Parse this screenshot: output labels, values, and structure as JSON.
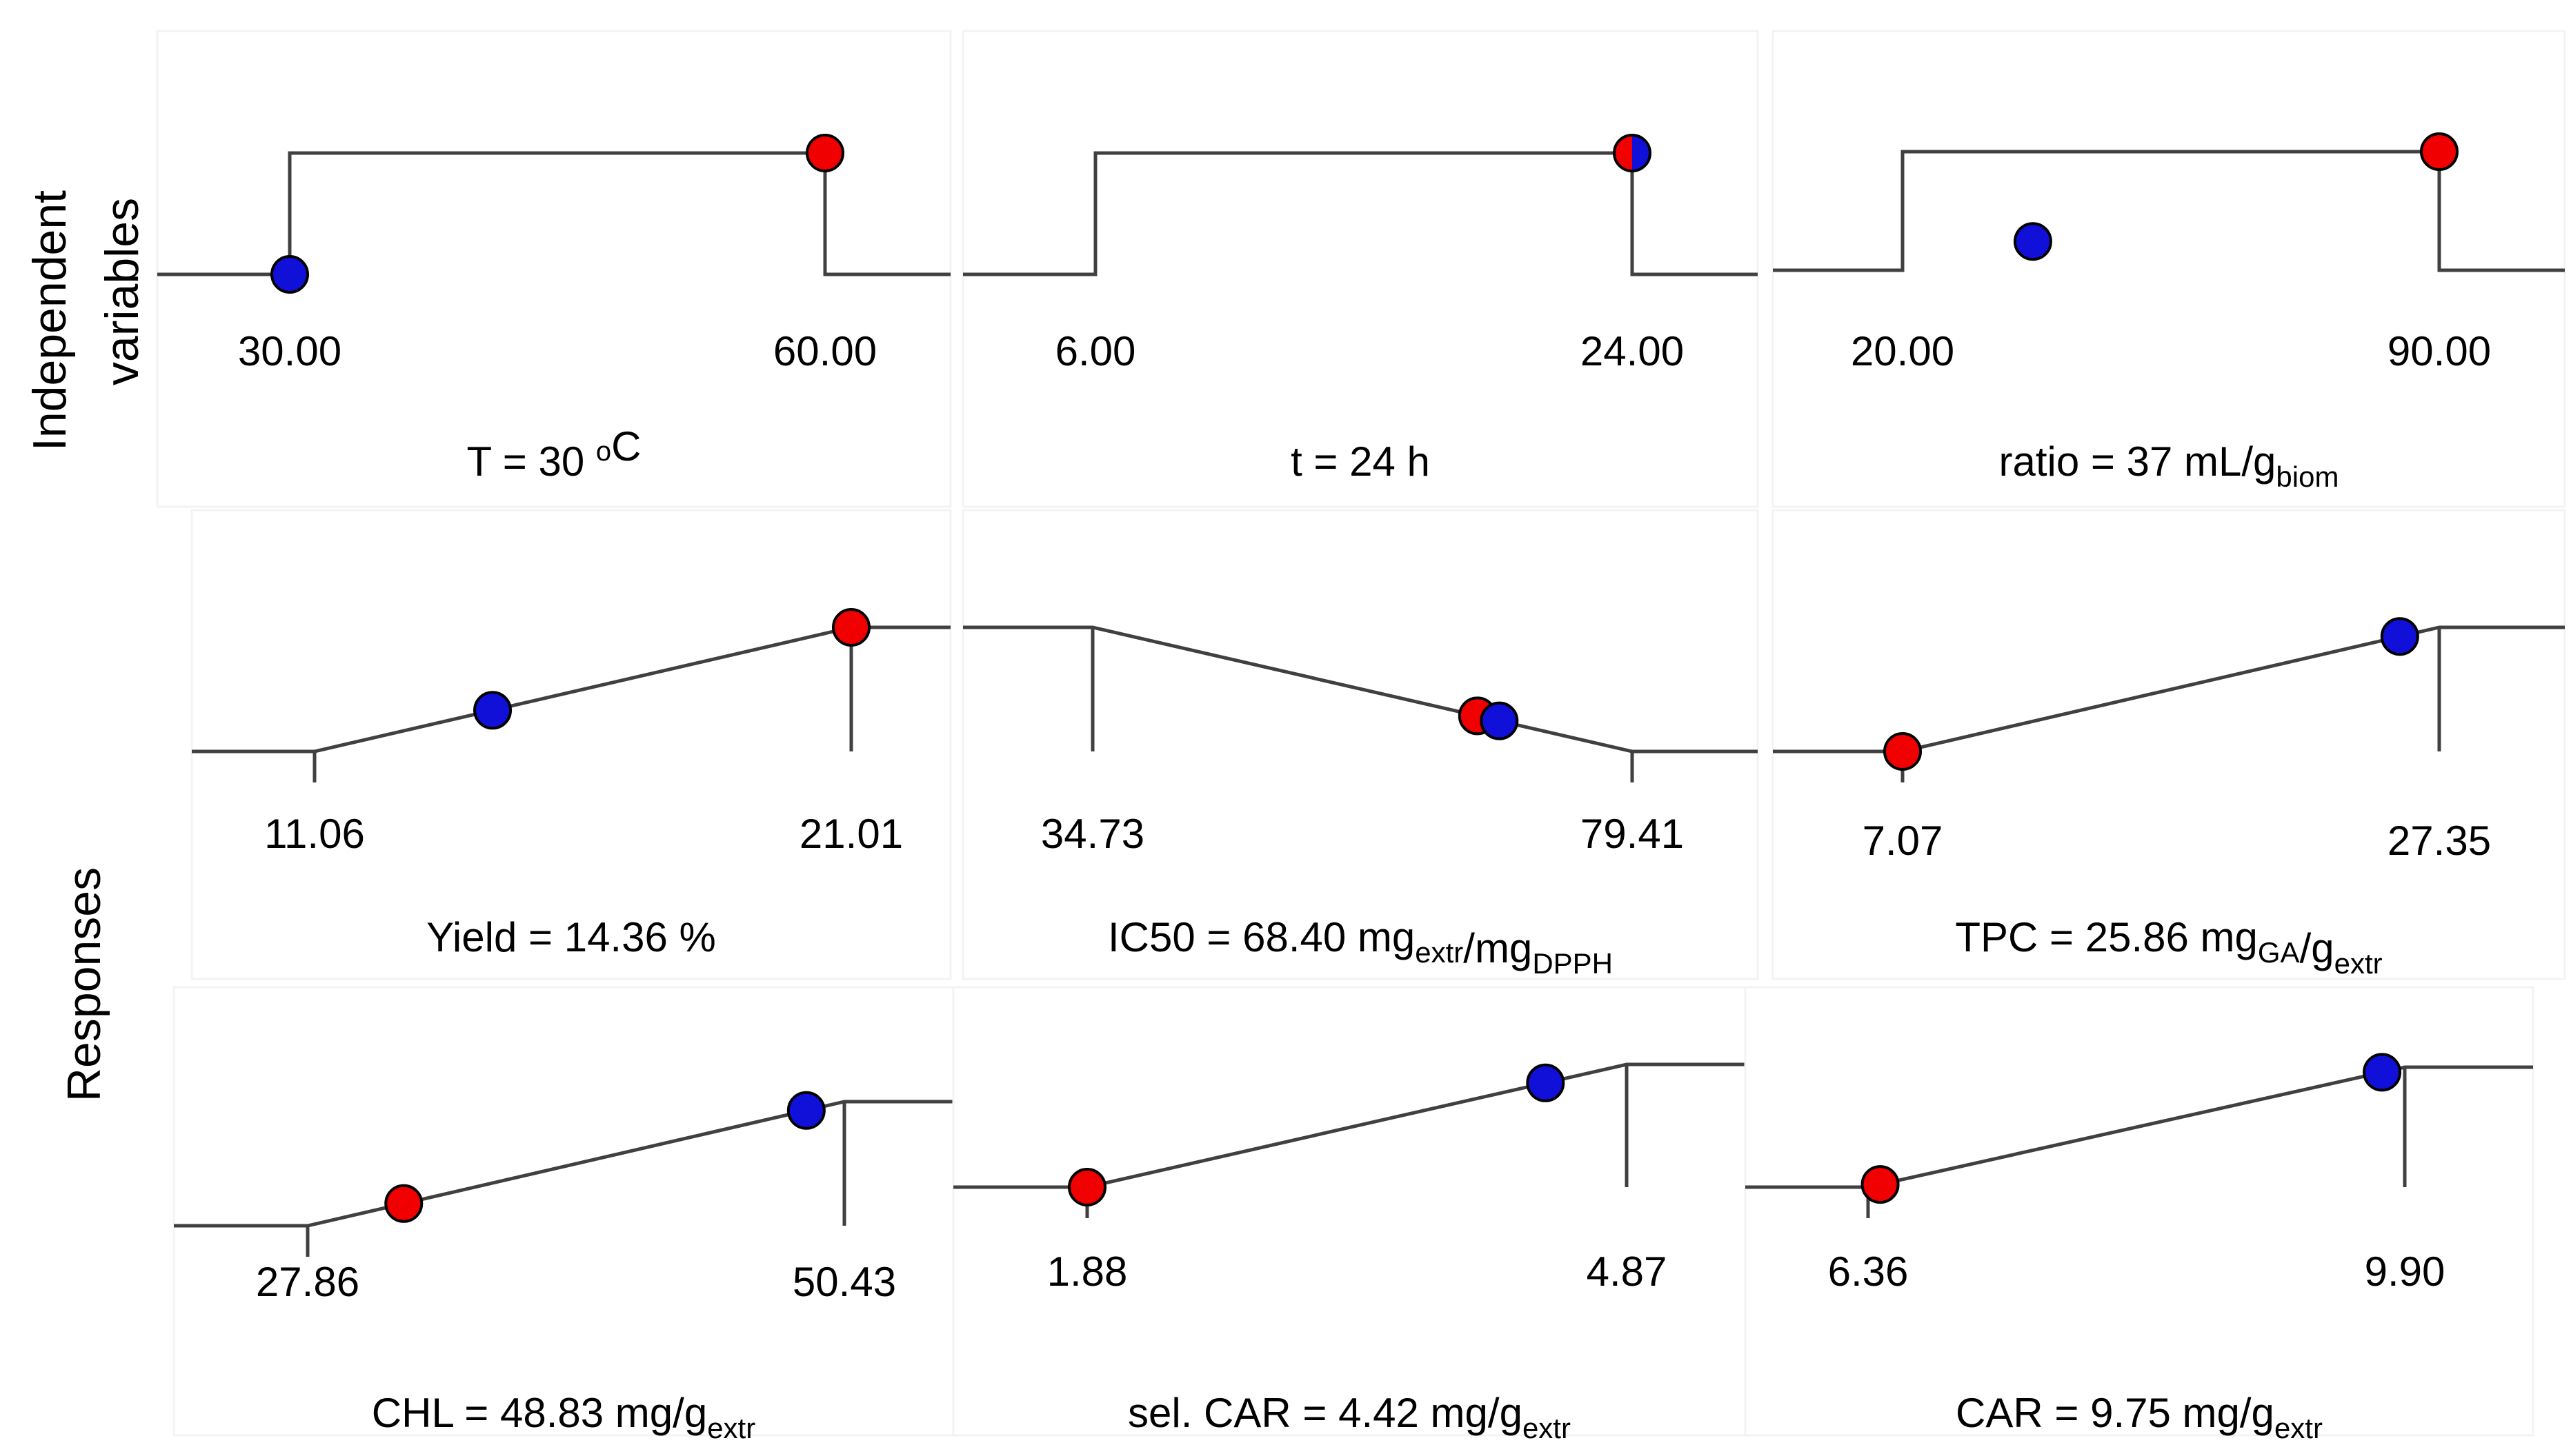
{
  "row_labels": {
    "independent": [
      "Independent",
      "variables"
    ],
    "responses": "Responses"
  },
  "colors": {
    "line": "#404040",
    "blue_marker": "#1010d8",
    "red_marker": "#f00000",
    "panel_edge": "#f3f3f3"
  },
  "chart_data": [
    {
      "type": "line",
      "row": "Independent variables",
      "variable": "T",
      "shape": "step",
      "min": 30.0,
      "max": 60.0,
      "min_label": "30.00",
      "max_label": "60.00",
      "blue_value": 30.0,
      "red_value": 60.0,
      "caption": [
        "T = 30 ",
        {
          "sup": "o"
        },
        "C"
      ]
    },
    {
      "type": "line",
      "row": "Independent variables",
      "variable": "t",
      "shape": "step",
      "min": 6.0,
      "max": 24.0,
      "min_label": "6.00",
      "max_label": "24.00",
      "blue_value": 24.0,
      "red_value": 24.0,
      "caption": [
        "t = 24 h"
      ]
    },
    {
      "type": "line",
      "row": "Independent variables",
      "variable": "ratio",
      "shape": "step",
      "min": 20.0,
      "max": 90.0,
      "min_label": "20.00",
      "max_label": "90.00",
      "blue_value": 37.0,
      "red_value": 90.0,
      "caption": [
        "ratio = 37 mL/g",
        {
          "sub": "biom"
        }
      ]
    },
    {
      "type": "line",
      "row": "Responses",
      "variable": "Yield",
      "shape": "maximize",
      "min": 11.06,
      "max": 21.01,
      "min_label": "11.06",
      "max_label": "21.01",
      "blue_value": 14.36,
      "red_value": 21.01,
      "caption": [
        "Yield = 14.36 %"
      ]
    },
    {
      "type": "line",
      "row": "Responses",
      "variable": "IC50",
      "shape": "minimize",
      "min": 34.73,
      "max": 79.41,
      "min_label": "34.73",
      "max_label": "79.41",
      "blue_value": 68.4,
      "red_value": 66.6,
      "caption": [
        "IC50 = 68.40 mg",
        {
          "sub": "extr"
        },
        "/mg",
        {
          "sub": "DPPH"
        }
      ]
    },
    {
      "type": "line",
      "row": "Responses",
      "variable": "TPC",
      "shape": "maximize",
      "min": 7.07,
      "max": 27.35,
      "min_label": "7.07",
      "max_label": "27.35",
      "blue_value": 25.86,
      "red_value": 7.07,
      "caption": [
        "TPC = 25.86 mg",
        {
          "sub": "GA"
        },
        "/g",
        {
          "sub": "extr"
        }
      ]
    },
    {
      "type": "line",
      "row": "Responses",
      "variable": "CHL",
      "shape": "maximize",
      "min": 27.86,
      "max": 50.43,
      "min_label": "27.86",
      "max_label": "50.43",
      "blue_value": 48.83,
      "red_value": 31.9,
      "caption": [
        "CHL = 48.83 mg/g",
        {
          "sub": "extr"
        }
      ]
    },
    {
      "type": "line",
      "row": "Responses",
      "variable": "sel. CAR",
      "shape": "maximize",
      "min": 1.88,
      "max": 4.87,
      "min_label": "1.88",
      "max_label": "4.87",
      "blue_value": 4.42,
      "red_value": 1.88,
      "caption": [
        "sel. CAR = 4.42 mg/g",
        {
          "sub": "extr"
        }
      ]
    },
    {
      "type": "line",
      "row": "Responses",
      "variable": "CAR",
      "shape": "maximize",
      "min": 6.36,
      "max": 9.9,
      "min_label": "6.36",
      "max_label": "9.90",
      "blue_value": 9.75,
      "red_value": 6.44,
      "caption": [
        "CAR = 9.75 mg/g",
        {
          "sub": "extr"
        }
      ]
    }
  ]
}
